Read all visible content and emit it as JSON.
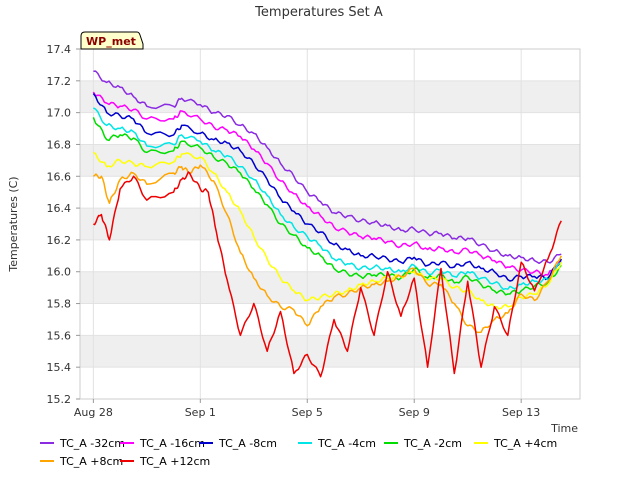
{
  "chart_data": {
    "type": "line",
    "title": "Temperatures Set A",
    "xlabel": "Time",
    "ylabel": "Temperatures (C)",
    "badge": "WP_met",
    "ylim": [
      15.2,
      17.4
    ],
    "yticks": [
      15.2,
      15.4,
      15.6,
      15.8,
      16.0,
      16.2,
      16.4,
      16.6,
      16.8,
      17.0,
      17.2,
      17.4
    ],
    "xlim": [
      -0.5,
      18.2
    ],
    "xticks": [
      {
        "label": "Aug 28",
        "day": 0
      },
      {
        "label": "Sep 1",
        "day": 4
      },
      {
        "label": "Sep 5",
        "day": 8
      },
      {
        "label": "Sep 9",
        "day": 12
      },
      {
        "label": "Sep 13",
        "day": 16
      }
    ],
    "grid": "horizontal bands",
    "legend_position": "bottom",
    "series": [
      {
        "name": "TC_A -32cm",
        "color": "#8a2be2",
        "x": [
          0,
          0.5,
          1,
          1.5,
          2,
          3,
          3.3,
          4,
          4.5,
          5,
          5.5,
          6,
          6.5,
          7,
          7.5,
          8,
          8.5,
          9,
          9.5,
          10,
          10.5,
          11,
          11.5,
          12,
          12.5,
          13,
          13.5,
          14,
          14.5,
          15,
          15.5,
          16,
          16.5,
          17,
          17.5
        ],
        "y": [
          17.26,
          17.19,
          17.16,
          17.1,
          17.04,
          17.04,
          17.09,
          17.05,
          17.0,
          16.98,
          16.92,
          16.87,
          16.78,
          16.68,
          16.6,
          16.5,
          16.44,
          16.37,
          16.35,
          16.32,
          16.31,
          16.29,
          16.26,
          16.27,
          16.24,
          16.24,
          16.21,
          16.21,
          16.17,
          16.13,
          16.1,
          16.09,
          16.07,
          16.06,
          16.11
        ]
      },
      {
        "name": "TC_A -16cm",
        "color": "#ff00ff",
        "x": [
          0,
          0.5,
          1,
          1.5,
          2,
          3,
          3.3,
          4,
          4.5,
          5,
          5.5,
          6,
          6.5,
          7,
          7.5,
          8,
          8.5,
          9,
          9.5,
          10,
          10.5,
          11,
          11.5,
          12,
          12.5,
          13,
          13.5,
          14,
          14.5,
          15,
          15.5,
          16,
          16.5,
          17,
          17.5
        ],
        "y": [
          17.13,
          17.06,
          17.04,
          17.02,
          16.96,
          16.96,
          17.01,
          16.96,
          16.91,
          16.89,
          16.85,
          16.77,
          16.68,
          16.57,
          16.49,
          16.41,
          16.35,
          16.28,
          16.25,
          16.22,
          16.21,
          16.19,
          16.16,
          16.18,
          16.14,
          16.15,
          16.12,
          16.14,
          16.1,
          16.07,
          16.03,
          16.01,
          16.0,
          15.98,
          16.07
        ]
      },
      {
        "name": "TC_A -8cm",
        "color": "#0000cd",
        "x": [
          0,
          0.5,
          1,
          1.5,
          2,
          3,
          3.3,
          4,
          4.5,
          5,
          5.5,
          6,
          6.5,
          7,
          7.5,
          8,
          8.5,
          9,
          9.5,
          10,
          10.5,
          11,
          11.5,
          12,
          12.5,
          13,
          13.5,
          14,
          14.5,
          15,
          15.5,
          16,
          16.5,
          17,
          17.5
        ],
        "y": [
          17.12,
          17.0,
          16.98,
          16.96,
          16.87,
          16.86,
          16.92,
          16.87,
          16.83,
          16.81,
          16.76,
          16.68,
          16.58,
          16.46,
          16.38,
          16.3,
          16.25,
          16.17,
          16.14,
          16.1,
          16.1,
          16.08,
          16.06,
          16.09,
          16.04,
          16.06,
          16.03,
          16.06,
          16.02,
          16.0,
          15.95,
          15.97,
          15.97,
          15.96,
          16.08
        ]
      },
      {
        "name": "TC_A -4cm",
        "color": "#00e5e5",
        "x": [
          0,
          0.5,
          1,
          1.5,
          2,
          3,
          3.3,
          4,
          4.5,
          5,
          5.5,
          6,
          6.5,
          7,
          7.5,
          8,
          8.5,
          9,
          9.5,
          10,
          10.5,
          11,
          11.5,
          12,
          12.5,
          13,
          13.5,
          14,
          14.5,
          15,
          15.5,
          16,
          16.5,
          17,
          17.5
        ],
        "y": [
          17.03,
          16.92,
          16.9,
          16.88,
          16.79,
          16.8,
          16.86,
          16.82,
          16.76,
          16.73,
          16.66,
          16.58,
          16.48,
          16.36,
          16.28,
          16.22,
          16.16,
          16.08,
          16.05,
          16.02,
          16.03,
          16.02,
          16.0,
          16.04,
          15.99,
          16.01,
          15.97,
          16.0,
          15.96,
          15.93,
          15.89,
          15.92,
          15.94,
          15.95,
          16.06
        ]
      },
      {
        "name": "TC_A -2cm",
        "color": "#00dd00",
        "x": [
          0,
          0.5,
          1,
          1.5,
          2,
          3,
          3.3,
          4,
          4.5,
          5,
          5.5,
          6,
          6.5,
          7,
          7.5,
          8,
          8.5,
          9,
          9.5,
          10,
          10.5,
          11,
          11.5,
          12,
          12.5,
          13,
          13.5,
          14,
          14.5,
          15,
          15.5,
          16,
          16.5,
          17,
          17.5
        ],
        "y": [
          16.97,
          16.83,
          16.86,
          16.84,
          16.75,
          16.76,
          16.82,
          16.78,
          16.72,
          16.68,
          16.62,
          16.52,
          16.42,
          16.3,
          16.23,
          16.15,
          16.1,
          16.02,
          15.99,
          15.97,
          15.98,
          15.98,
          15.96,
          16.02,
          15.96,
          15.98,
          15.93,
          15.97,
          15.92,
          15.88,
          15.86,
          15.88,
          15.91,
          15.93,
          16.04
        ]
      },
      {
        "name": "TC_A +4cm",
        "color": "#ffff00",
        "x": [
          0,
          0.5,
          1,
          1.5,
          2,
          3,
          3.3,
          4,
          4.5,
          5,
          5.5,
          6,
          6.5,
          7,
          7.5,
          8,
          8.5,
          9,
          9.5,
          10,
          10.5,
          11,
          11.5,
          12,
          12.5,
          13,
          13.5,
          14,
          14.5,
          15,
          15.5,
          16,
          16.5,
          17,
          17.5
        ],
        "y": [
          16.75,
          16.66,
          16.7,
          16.68,
          16.66,
          16.69,
          16.74,
          16.72,
          16.62,
          16.5,
          16.38,
          16.22,
          16.08,
          15.96,
          15.88,
          15.82,
          15.84,
          15.86,
          15.88,
          15.92,
          15.94,
          15.96,
          15.97,
          16.0,
          15.95,
          15.96,
          15.9,
          15.88,
          15.82,
          15.78,
          15.78,
          15.84,
          15.86,
          15.92,
          16.06
        ]
      },
      {
        "name": "TC_A +8cm",
        "color": "#ffa500",
        "x": [
          0,
          0.3,
          0.6,
          1,
          1.5,
          2,
          3,
          3.3,
          3.6,
          4,
          4.5,
          5,
          5.5,
          6,
          6.5,
          7,
          7.5,
          8,
          8.5,
          9,
          9.5,
          10,
          10.5,
          11,
          11.5,
          12,
          12.5,
          13,
          13.5,
          14,
          14.5,
          15,
          15.5,
          16,
          16.5,
          17,
          17.5
        ],
        "y": [
          16.6,
          16.6,
          16.43,
          16.58,
          16.62,
          16.55,
          16.62,
          16.66,
          16.62,
          16.67,
          16.57,
          16.36,
          16.12,
          15.96,
          15.85,
          15.78,
          15.76,
          15.66,
          15.78,
          15.84,
          15.86,
          15.9,
          15.92,
          15.94,
          15.97,
          16.02,
          15.92,
          15.92,
          15.8,
          15.66,
          15.62,
          15.7,
          15.74,
          15.86,
          15.82,
          15.94,
          16.1
        ]
      },
      {
        "name": "TC_A +12cm",
        "color": "#ee0000",
        "x": [
          0,
          0.3,
          0.6,
          1,
          1.5,
          2,
          3,
          3.3,
          3.6,
          4,
          4.3,
          4.6,
          5,
          5.5,
          6,
          6.5,
          7,
          7.5,
          8,
          8.5,
          9,
          9.5,
          10,
          10.5,
          11,
          11.5,
          12,
          12.5,
          13,
          13.5,
          14,
          14.5,
          15,
          15.5,
          16,
          16.5,
          17,
          17.5
        ],
        "y": [
          16.3,
          16.36,
          16.2,
          16.52,
          16.6,
          16.45,
          16.5,
          16.58,
          16.62,
          16.52,
          16.5,
          16.25,
          15.95,
          15.6,
          15.8,
          15.5,
          15.75,
          15.36,
          15.48,
          15.34,
          15.7,
          15.5,
          15.9,
          15.6,
          16.0,
          15.72,
          15.96,
          15.4,
          16.02,
          15.36,
          15.94,
          15.4,
          15.78,
          15.6,
          16.06,
          15.88,
          16.08,
          16.32
        ]
      }
    ]
  }
}
